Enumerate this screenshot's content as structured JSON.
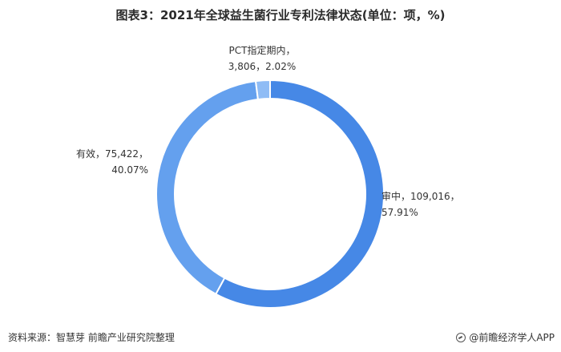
{
  "title": "图表3：2021年全球益生菌行业专利法律状态(单位：项，%)",
  "footer": {
    "source": "资料来源：智慧芽 前瞻产业研究院整理",
    "brand": "@前瞻经济学人APP",
    "brand_icon": "qianzhan-logo-icon"
  },
  "chart_data": {
    "type": "pie",
    "variant": "donut",
    "title": "图表3：2021年全球益生菌行业专利法律状态(单位：项，%)",
    "slices": [
      {
        "name": "审中",
        "value": 109016,
        "value_label": "109,016",
        "percent_label": "57.91%",
        "color": "#4688e6"
      },
      {
        "name": "有效",
        "value": 75422,
        "value_label": "75,422",
        "percent_label": "40.07%",
        "color": "#64a0ee"
      },
      {
        "name": "PCT指定期内",
        "value": 3806,
        "value_label": "3,806",
        "percent_label": "2.02%",
        "color": "#8fbcf5"
      }
    ]
  }
}
